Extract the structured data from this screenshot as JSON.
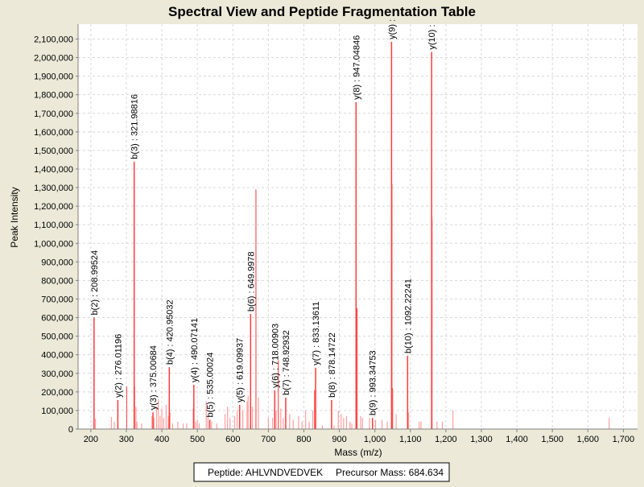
{
  "chart_data": {
    "type": "bar",
    "title": "Spectral View and Peptide Fragmentation Table",
    "xlabel": "Mass (m/z)",
    "ylabel": "Peak Intensity",
    "xlim": [
      164,
      1740
    ],
    "ylim": [
      0,
      2180000
    ],
    "xticks": [
      200,
      300,
      400,
      500,
      600,
      700,
      800,
      900,
      1000,
      1100,
      1200,
      1300,
      1400,
      1500,
      1600,
      1700
    ],
    "xtick_labels": [
      "200",
      "300",
      "400",
      "500",
      "600",
      "700",
      "800",
      "900",
      "1,000",
      "1,100",
      "1,200",
      "1,300",
      "1,400",
      "1,500",
      "1,600",
      "1,700"
    ],
    "yticks": [
      0,
      100000,
      200000,
      300000,
      400000,
      500000,
      600000,
      700000,
      800000,
      900000,
      1000000,
      1100000,
      1200000,
      1300000,
      1400000,
      1500000,
      1600000,
      1700000,
      1800000,
      1900000,
      2000000,
      2100000
    ],
    "ytick_labels": [
      "0",
      "100,000",
      "200,000",
      "300,000",
      "400,000",
      "500,000",
      "600,000",
      "700,000",
      "800,000",
      "900,000",
      "1,000,000",
      "1,100,000",
      "1,200,000",
      "1,300,000",
      "1,400,000",
      "1,500,000",
      "1,600,000",
      "1,700,000",
      "1,800,000",
      "1,900,000",
      "2,000,000",
      "2,100,000"
    ],
    "grid": true,
    "colors": {
      "annotated": "#ff3b3b",
      "peak": "#ff5555",
      "faint": "#ff9f9f"
    },
    "annotated_peaks": [
      {
        "mz": 208.99524,
        "intensity": 600000,
        "label": "b(2) : 208.99524"
      },
      {
        "mz": 276.01196,
        "intensity": 156000,
        "label": "y(2) : 276.01196"
      },
      {
        "mz": 321.98816,
        "intensity": 1440000,
        "label": "b(3) : 321.98816"
      },
      {
        "mz": 375.00684,
        "intensity": 90000,
        "label": "y(3) : 375.00684"
      },
      {
        "mz": 420.95032,
        "intensity": 333000,
        "label": "b(4) : 420.95032"
      },
      {
        "mz": 490.07141,
        "intensity": 238000,
        "label": "y(4) : 490.07141"
      },
      {
        "mz": 535.00024,
        "intensity": 50000,
        "label": "b(5) : 535.00024"
      },
      {
        "mz": 619.09937,
        "intensity": 130000,
        "label": "y(5) : 619.09937"
      },
      {
        "mz": 649.9978,
        "intensity": 619000,
        "label": "b(6) : 649.9978"
      },
      {
        "mz": 718.00903,
        "intensity": 208000,
        "label": "y(6) : 718.00903"
      },
      {
        "mz": 748.92932,
        "intensity": 169000,
        "label": "b(7) : 748.92932"
      },
      {
        "mz": 833.13611,
        "intensity": 330000,
        "label": "y(7) : 833.13611"
      },
      {
        "mz": 878.14722,
        "intensity": 156000,
        "label": "b(8) : 878.14722"
      },
      {
        "mz": 947.04846,
        "intensity": 1760000,
        "label": "y(8) : 947.04846"
      },
      {
        "mz": 993.34753,
        "intensity": 60000,
        "label": "b(9) : 993.34753"
      },
      {
        "mz": 1047.0,
        "intensity": 2085000,
        "label": "y(9) :"
      },
      {
        "mz": 1092.22241,
        "intensity": 394000,
        "label": "b(10) : 1092.22241"
      },
      {
        "mz": 1160.0,
        "intensity": 2030000,
        "label": "y(10) :"
      }
    ],
    "other_peaks": [
      [
        213,
        55000
      ],
      [
        258,
        65000
      ],
      [
        266,
        40000
      ],
      [
        301,
        230000
      ],
      [
        323,
        230000
      ],
      [
        327,
        120000
      ],
      [
        330,
        40000
      ],
      [
        343,
        30000
      ],
      [
        372,
        70000
      ],
      [
        378,
        60000
      ],
      [
        385,
        120000
      ],
      [
        390,
        160000
      ],
      [
        395,
        70000
      ],
      [
        400,
        110000
      ],
      [
        405,
        60000
      ],
      [
        412,
        130000
      ],
      [
        418,
        70000
      ],
      [
        423,
        90000
      ],
      [
        430,
        30000
      ],
      [
        445,
        40000
      ],
      [
        460,
        30000
      ],
      [
        470,
        30000
      ],
      [
        488,
        110000
      ],
      [
        495,
        40000
      ],
      [
        500,
        50000
      ],
      [
        505,
        30000
      ],
      [
        525,
        150000
      ],
      [
        530,
        70000
      ],
      [
        540,
        40000
      ],
      [
        555,
        30000
      ],
      [
        578,
        80000
      ],
      [
        585,
        120000
      ],
      [
        592,
        60000
      ],
      [
        605,
        70000
      ],
      [
        612,
        100000
      ],
      [
        628,
        100000
      ],
      [
        640,
        150000
      ],
      [
        643,
        180000
      ],
      [
        655,
        120000
      ],
      [
        665,
        1290000
      ],
      [
        672,
        170000
      ],
      [
        700,
        60000
      ],
      [
        712,
        60000
      ],
      [
        722,
        100000
      ],
      [
        728,
        370000
      ],
      [
        735,
        110000
      ],
      [
        742,
        60000
      ],
      [
        760,
        80000
      ],
      [
        770,
        50000
      ],
      [
        785,
        70000
      ],
      [
        795,
        40000
      ],
      [
        805,
        100000
      ],
      [
        815,
        40000
      ],
      [
        825,
        100000
      ],
      [
        830,
        210000
      ],
      [
        852,
        20000
      ],
      [
        885,
        20000
      ],
      [
        897,
        100000
      ],
      [
        905,
        80000
      ],
      [
        912,
        60000
      ],
      [
        920,
        70000
      ],
      [
        930,
        40000
      ],
      [
        935,
        30000
      ],
      [
        950,
        650000
      ],
      [
        960,
        70000
      ],
      [
        965,
        60000
      ],
      [
        985,
        60000
      ],
      [
        1002,
        50000
      ],
      [
        1020,
        50000
      ],
      [
        1035,
        40000
      ],
      [
        1048,
        1320000
      ],
      [
        1050,
        220000
      ],
      [
        1060,
        80000
      ],
      [
        1095,
        90000
      ],
      [
        1125,
        40000
      ],
      [
        1130,
        40000
      ],
      [
        1161,
        1130000
      ],
      [
        1175,
        40000
      ],
      [
        1190,
        40000
      ],
      [
        1220,
        100000
      ],
      [
        1660,
        60000
      ]
    ]
  },
  "legend": {
    "peptide_label": "Peptide: AHLVNDVEDVEK",
    "precursor_label": "Precursor Mass: 684.634"
  }
}
